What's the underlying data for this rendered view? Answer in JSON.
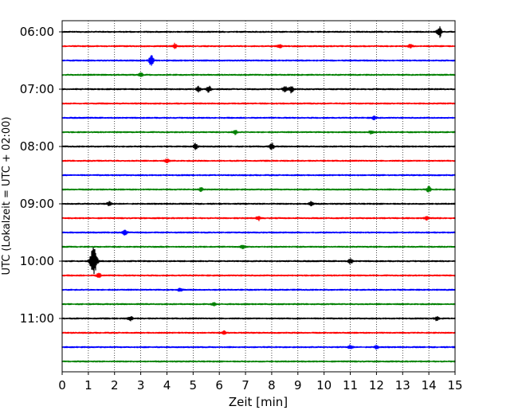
{
  "chart_data": {
    "type": "line",
    "title": "",
    "xlabel": "Zeit  [min]",
    "ylabel": "UTC (Lokalzeit = UTC + 02:00)",
    "xlim": [
      0,
      15
    ],
    "x_ticks": [
      0,
      1,
      2,
      3,
      4,
      5,
      6,
      7,
      8,
      9,
      10,
      11,
      12,
      13,
      14,
      15
    ],
    "x_tick_labels": [
      "0",
      "1",
      "2",
      "3",
      "4",
      "5",
      "6",
      "7",
      "8",
      "9",
      "10",
      "11",
      "12",
      "13",
      "14",
      "15"
    ],
    "y_tick_labels": [
      "06:00",
      "07:00",
      "08:00",
      "09:00",
      "10:00",
      "11:00"
    ],
    "traces_per_hour": 4,
    "trace_minutes": 15,
    "vertical_grid": true,
    "grid_style": "dotted",
    "trace_colors": [
      "#000000",
      "#ff0000",
      "#0000ff",
      "#008000"
    ],
    "traces": [
      {
        "start": "06:00",
        "color": "#000000",
        "events": [
          {
            "t": 14.4,
            "amp": 1.4
          }
        ]
      },
      {
        "start": "06:15",
        "color": "#ff0000",
        "events": [
          {
            "t": 4.3,
            "amp": 0.6
          },
          {
            "t": 8.3,
            "amp": 0.4
          },
          {
            "t": 13.3,
            "amp": 0.4
          }
        ]
      },
      {
        "start": "06:30",
        "color": "#0000ff",
        "events": [
          {
            "t": 3.4,
            "amp": 1.3
          }
        ]
      },
      {
        "start": "06:45",
        "color": "#008000",
        "events": [
          {
            "t": 3.0,
            "amp": 0.5
          }
        ]
      },
      {
        "start": "07:00",
        "color": "#000000",
        "events": [
          {
            "t": 5.2,
            "amp": 0.7
          },
          {
            "t": 5.6,
            "amp": 0.8
          },
          {
            "t": 8.5,
            "amp": 0.7
          },
          {
            "t": 8.75,
            "amp": 0.9
          }
        ]
      },
      {
        "start": "07:15",
        "color": "#ff0000",
        "events": []
      },
      {
        "start": "07:30",
        "color": "#0000ff",
        "events": [
          {
            "t": 11.9,
            "amp": 0.4
          }
        ]
      },
      {
        "start": "07:45",
        "color": "#008000",
        "events": [
          {
            "t": 6.6,
            "amp": 0.5
          },
          {
            "t": 11.8,
            "amp": 0.4
          }
        ]
      },
      {
        "start": "08:00",
        "color": "#000000",
        "events": [
          {
            "t": 5.1,
            "amp": 0.7
          },
          {
            "t": 8.0,
            "amp": 0.8
          }
        ]
      },
      {
        "start": "08:15",
        "color": "#ff0000",
        "events": [
          {
            "t": 4.0,
            "amp": 0.4
          }
        ]
      },
      {
        "start": "08:30",
        "color": "#0000ff",
        "events": []
      },
      {
        "start": "08:45",
        "color": "#008000",
        "events": [
          {
            "t": 5.3,
            "amp": 0.4
          },
          {
            "t": 14.0,
            "amp": 0.7
          }
        ]
      },
      {
        "start": "09:00",
        "color": "#000000",
        "events": [
          {
            "t": 1.8,
            "amp": 0.5
          },
          {
            "t": 9.5,
            "amp": 0.6
          }
        ]
      },
      {
        "start": "09:15",
        "color": "#ff0000",
        "events": [
          {
            "t": 7.5,
            "amp": 0.5
          },
          {
            "t": 13.9,
            "amp": 0.4
          }
        ]
      },
      {
        "start": "09:30",
        "color": "#0000ff",
        "events": [
          {
            "t": 2.4,
            "amp": 0.6
          }
        ]
      },
      {
        "start": "09:45",
        "color": "#008000",
        "events": [
          {
            "t": 6.9,
            "amp": 0.5
          }
        ]
      },
      {
        "start": "10:00",
        "color": "#000000",
        "events": [
          {
            "t": 1.2,
            "amp": 3.4
          },
          {
            "t": 11.0,
            "amp": 0.6
          }
        ]
      },
      {
        "start": "10:15",
        "color": "#ff0000",
        "events": [
          {
            "t": 1.4,
            "amp": 0.6
          }
        ]
      },
      {
        "start": "10:30",
        "color": "#0000ff",
        "events": [
          {
            "t": 4.5,
            "amp": 0.4
          }
        ]
      },
      {
        "start": "10:45",
        "color": "#008000",
        "events": [
          {
            "t": 5.8,
            "amp": 0.4
          }
        ]
      },
      {
        "start": "11:00",
        "color": "#000000",
        "events": [
          {
            "t": 2.6,
            "amp": 0.5
          },
          {
            "t": 14.3,
            "amp": 0.5
          }
        ]
      },
      {
        "start": "11:15",
        "color": "#ff0000",
        "events": [
          {
            "t": 6.2,
            "amp": 0.4
          }
        ]
      },
      {
        "start": "11:30",
        "color": "#0000ff",
        "events": [
          {
            "t": 11.0,
            "amp": 0.5
          },
          {
            "t": 12.0,
            "amp": 0.4
          }
        ]
      },
      {
        "start": "11:45",
        "color": "#008000",
        "events": []
      }
    ]
  }
}
